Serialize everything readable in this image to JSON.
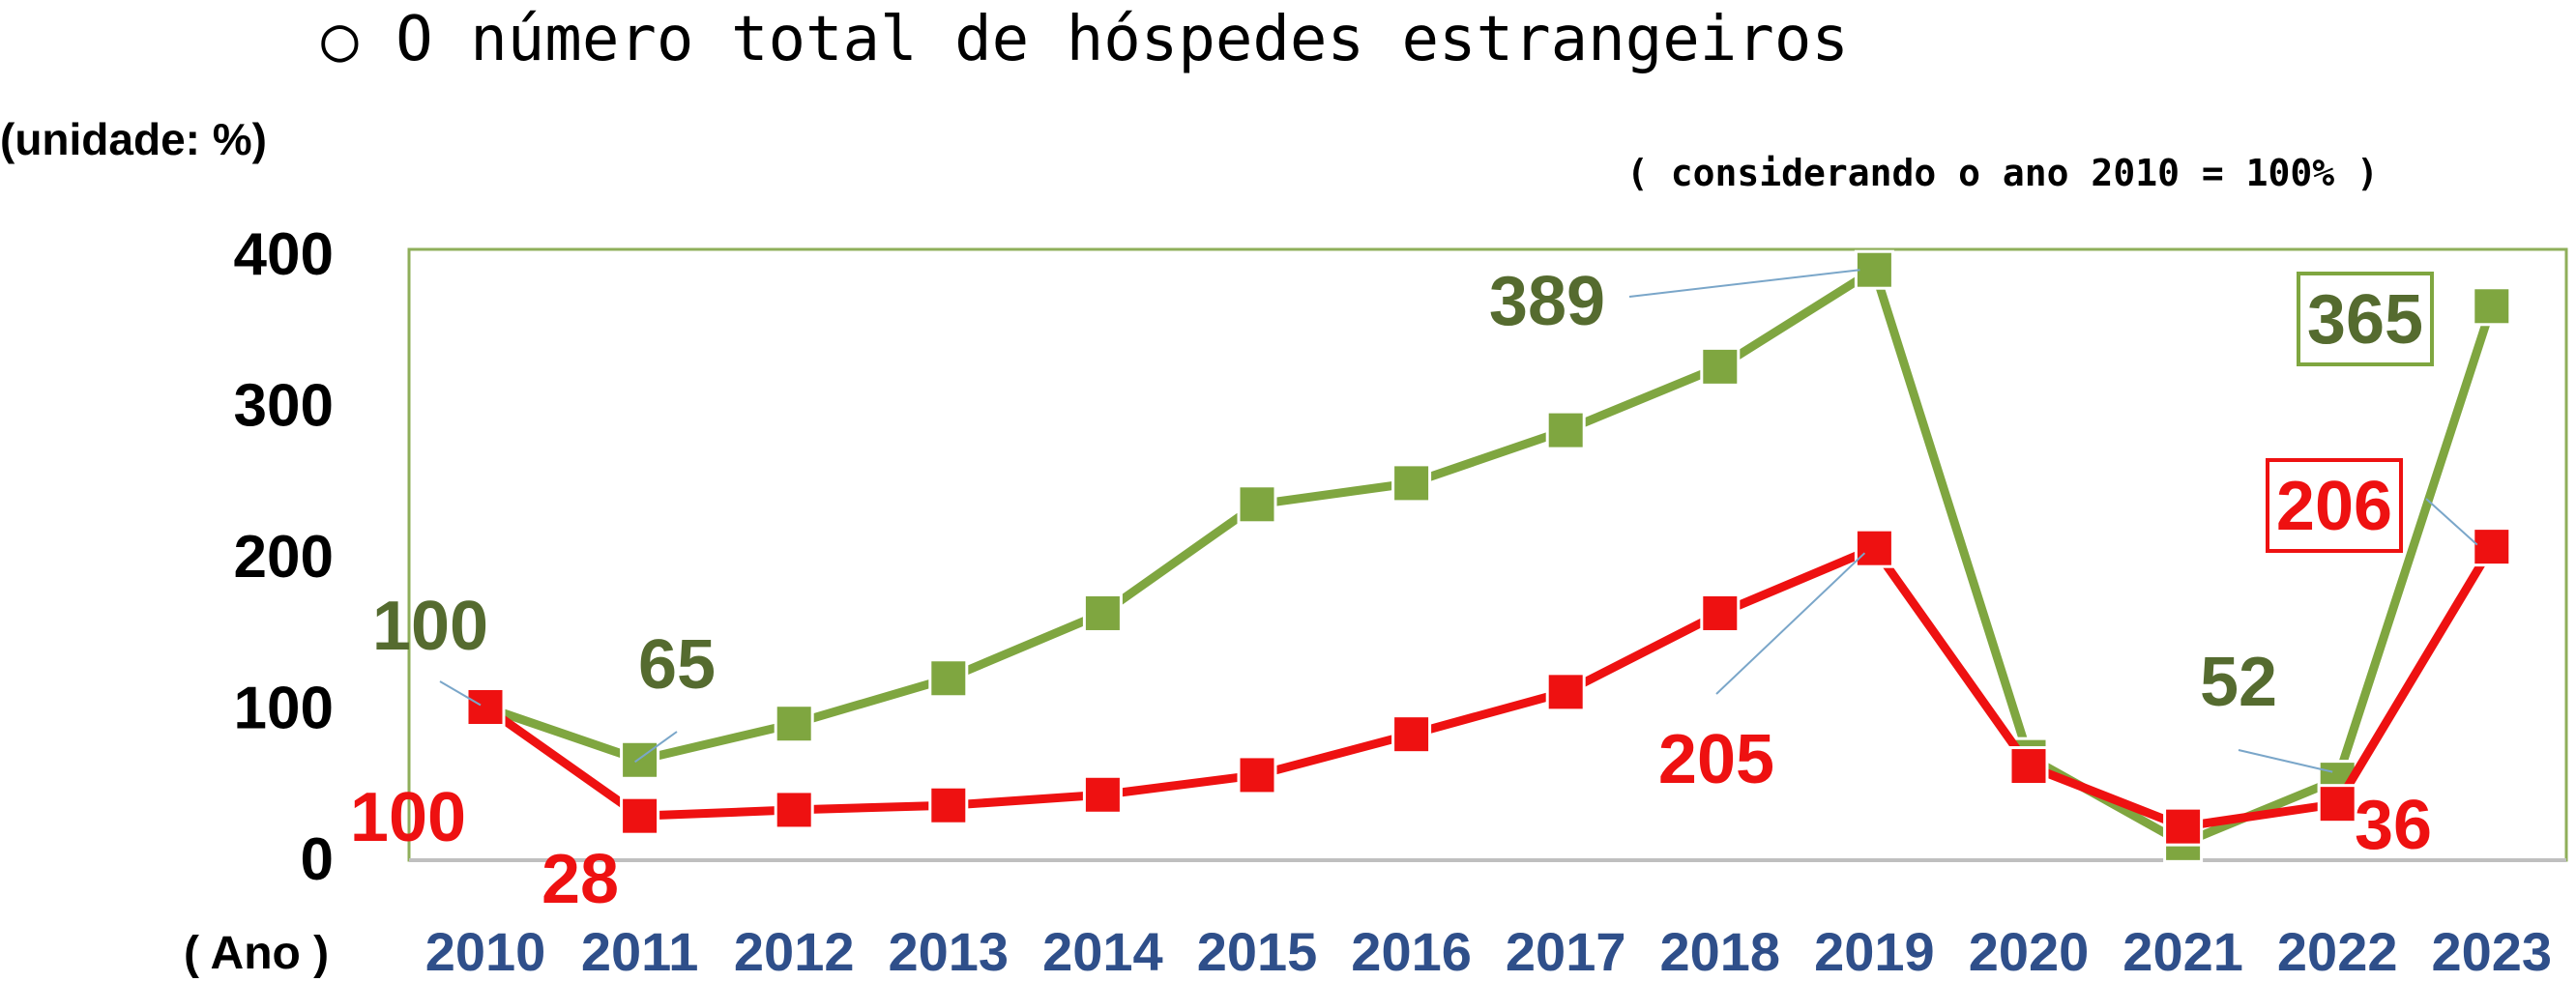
{
  "colors": {
    "series_green": "#7fa640",
    "series_red": "#ee1111",
    "label_green": "#556b2f",
    "label_red": "#ee1111",
    "frame": "#8faf5a",
    "xtick": "#2f4f8a"
  },
  "chart_data": {
    "type": "line",
    "title": "○ O número total de hóspedes estrangeiros",
    "subtitle": "( considerando o ano 2010 = 100% )",
    "unit_label": "(unidade: %)",
    "xlabel": "( Ano )",
    "ylim": [
      0,
      400
    ],
    "yticks": [
      "0",
      "100",
      "200",
      "300",
      "400"
    ],
    "grid": false,
    "categories": [
      "2010",
      "2011",
      "2012",
      "2013",
      "2014",
      "2015",
      "2016",
      "2017",
      "2018",
      "2019",
      "2020",
      "2021",
      "2022",
      "2023"
    ],
    "series": [
      {
        "color_key": "series_green",
        "values": [
          100,
          65,
          89,
          119,
          162,
          234,
          248,
          283,
          325,
          389,
          67,
          10,
          52,
          365
        ],
        "labels": [
          {
            "index": 0,
            "text": "100"
          },
          {
            "index": 1,
            "text": "65"
          },
          {
            "index": 9,
            "text": "389"
          },
          {
            "index": 12,
            "text": "52"
          },
          {
            "index": 13,
            "text": "365",
            "boxed": true
          }
        ]
      },
      {
        "color_key": "series_red",
        "values": [
          100,
          28,
          32,
          35,
          42,
          55,
          82,
          110,
          162,
          205,
          61,
          21,
          36,
          206
        ],
        "labels": [
          {
            "index": 0,
            "text": "100"
          },
          {
            "index": 1,
            "text": "28"
          },
          {
            "index": 9,
            "text": "205"
          },
          {
            "index": 12,
            "text": "36"
          },
          {
            "index": 13,
            "text": "206",
            "boxed": true
          }
        ]
      }
    ]
  }
}
